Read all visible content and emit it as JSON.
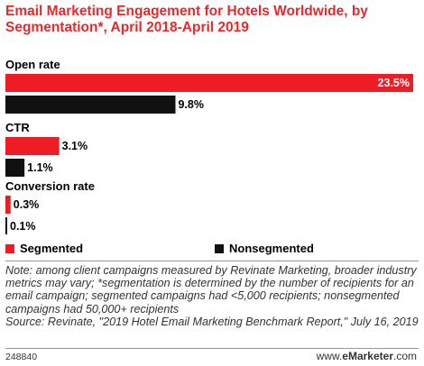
{
  "title": "Email Marketing Engagement for Hotels Worldwide, by Segmentation*, April 2018-April 2019",
  "colors": {
    "segmented": "#ee1c25",
    "nonsegmented": "#111111",
    "title": "#e8282b"
  },
  "chart_data": {
    "type": "bar",
    "orientation": "horizontal",
    "categories": [
      "Open rate",
      "CTR",
      "Conversion rate"
    ],
    "series": [
      {
        "name": "Segmented",
        "values": [
          23.5,
          3.1,
          0.3
        ],
        "labels": [
          "23.5%",
          "3.1%",
          "0.3%"
        ]
      },
      {
        "name": "Nonsegmented",
        "values": [
          9.8,
          1.1,
          0.1
        ],
        "labels": [
          "9.8%",
          "1.1%",
          "0.1%"
        ]
      }
    ],
    "xlim": [
      0,
      23.5
    ],
    "grid": false,
    "legend_position": "bottom"
  },
  "legend": {
    "segmented": "Segmented",
    "nonsegmented": "Nonsegmented"
  },
  "note": "Note: among client campaigns measured by Revinate Marketing, broader industry metrics may vary; *segmentation is determined by the number of recipients for an email campaign; segmented campaigns had <5,000 recipients; nonsegmented campaigns had 50,000+ recipients",
  "source": "Source: Revinate, \"2019 Hotel Email Marketing Benchmark Report,\" July 16, 2019",
  "footer": {
    "id": "248840",
    "brand_prefix": "www.",
    "brand_name": "eMarketer",
    "brand_suffix": ".com"
  }
}
